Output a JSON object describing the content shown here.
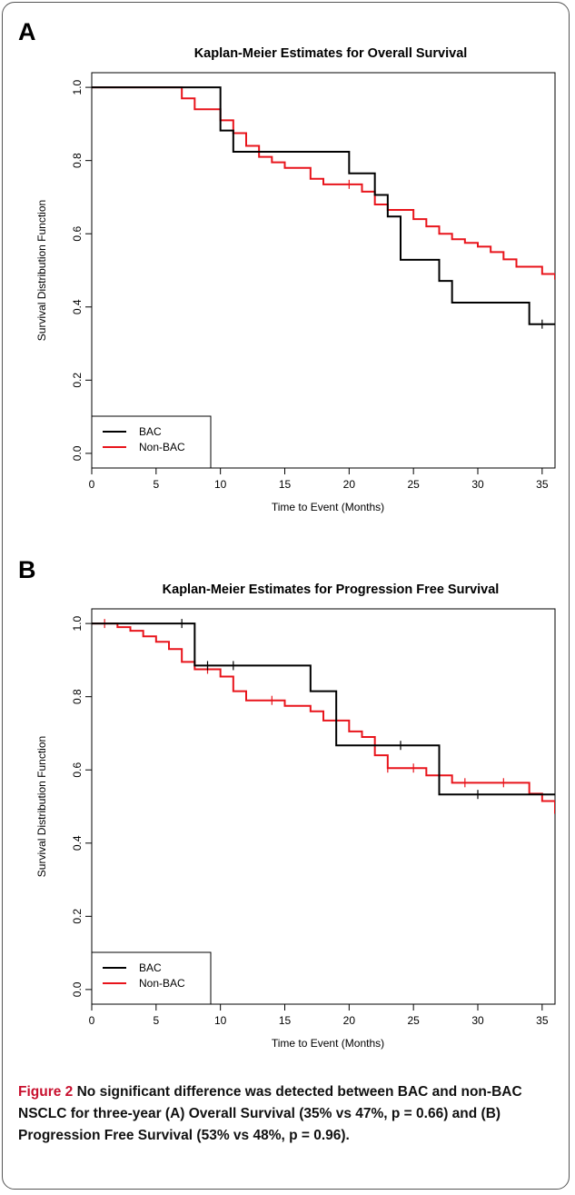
{
  "panels": [
    {
      "letter": "A"
    },
    {
      "letter": "B"
    }
  ],
  "chart_data": [
    {
      "type": "line",
      "title": "Kaplan-Meier Estimates for Overall Survival",
      "xlabel": "Time to Event (Months)",
      "ylabel": "Survival Distribution Function",
      "xlim": [
        0,
        36
      ],
      "ylim": [
        0,
        1
      ],
      "x_ticks": [
        "0",
        "5",
        "10",
        "15",
        "20",
        "25",
        "30",
        "35"
      ],
      "y_ticks": [
        "0.0",
        "0.2",
        "0.4",
        "0.6",
        "0.8",
        "1.0"
      ],
      "legend": "bottom-left",
      "series": [
        {
          "name": "BAC",
          "color": "#000000",
          "step": [
            [
              0,
              1.0
            ],
            [
              10,
              0.882
            ],
            [
              11,
              0.824
            ],
            [
              20,
              0.765
            ],
            [
              22,
              0.706
            ],
            [
              23,
              0.647
            ],
            [
              24,
              0.529
            ],
            [
              27,
              0.471
            ],
            [
              28,
              0.412
            ],
            [
              34,
              0.353
            ],
            [
              36,
              0.353
            ]
          ],
          "censored": [
            [
              35,
              0.353
            ]
          ]
        },
        {
          "name": "Non-BAC",
          "color": "#e8141b",
          "step": [
            [
              0,
              1.0
            ],
            [
              7,
              0.97
            ],
            [
              8,
              0.94
            ],
            [
              10,
              0.91
            ],
            [
              11,
              0.875
            ],
            [
              12,
              0.84
            ],
            [
              13,
              0.81
            ],
            [
              14,
              0.795
            ],
            [
              15,
              0.78
            ],
            [
              17,
              0.75
            ],
            [
              18,
              0.735
            ],
            [
              21,
              0.715
            ],
            [
              22,
              0.68
            ],
            [
              23,
              0.665
            ],
            [
              25,
              0.64
            ],
            [
              26,
              0.62
            ],
            [
              27,
              0.6
            ],
            [
              28,
              0.585
            ],
            [
              29,
              0.575
            ],
            [
              30,
              0.565
            ],
            [
              31,
              0.55
            ],
            [
              32,
              0.53
            ],
            [
              33,
              0.51
            ],
            [
              35,
              0.49
            ],
            [
              36,
              0.475
            ]
          ],
          "censored": [
            [
              20,
              0.735
            ]
          ]
        }
      ]
    },
    {
      "type": "line",
      "title": "Kaplan-Meier Estimates for Progression Free Survival",
      "xlabel": "Time to Event (Months)",
      "ylabel": "Survival Distribution Function",
      "xlim": [
        0,
        36
      ],
      "ylim": [
        0,
        1
      ],
      "x_ticks": [
        "0",
        "5",
        "10",
        "15",
        "20",
        "25",
        "30",
        "35"
      ],
      "y_ticks": [
        "0.0",
        "0.2",
        "0.4",
        "0.6",
        "0.8",
        "1.0"
      ],
      "legend": "bottom-left",
      "series": [
        {
          "name": "BAC",
          "color": "#000000",
          "step": [
            [
              0,
              1.0
            ],
            [
              8,
              0.885
            ],
            [
              17,
              0.815
            ],
            [
              19,
              0.667
            ],
            [
              27,
              0.533
            ],
            [
              36,
              0.533
            ]
          ],
          "censored": [
            [
              7,
              1.0
            ],
            [
              9,
              0.885
            ],
            [
              11,
              0.885
            ],
            [
              24,
              0.667
            ],
            [
              30,
              0.533
            ]
          ]
        },
        {
          "name": "Non-BAC",
          "color": "#e8141b",
          "step": [
            [
              0,
              1.0
            ],
            [
              2,
              0.99
            ],
            [
              3,
              0.98
            ],
            [
              4,
              0.965
            ],
            [
              5,
              0.95
            ],
            [
              6,
              0.93
            ],
            [
              7,
              0.895
            ],
            [
              8,
              0.875
            ],
            [
              10,
              0.855
            ],
            [
              11,
              0.815
            ],
            [
              12,
              0.79
            ],
            [
              15,
              0.775
            ],
            [
              17,
              0.76
            ],
            [
              18,
              0.735
            ],
            [
              20,
              0.705
            ],
            [
              21,
              0.69
            ],
            [
              22,
              0.64
            ],
            [
              23,
              0.605
            ],
            [
              26,
              0.585
            ],
            [
              28,
              0.565
            ],
            [
              34,
              0.535
            ],
            [
              35,
              0.515
            ],
            [
              36,
              0.48
            ]
          ],
          "censored": [
            [
              1,
              1.0
            ],
            [
              9,
              0.875
            ],
            [
              14,
              0.79
            ],
            [
              23,
              0.605
            ],
            [
              25,
              0.605
            ],
            [
              29,
              0.565
            ],
            [
              32,
              0.565
            ]
          ]
        }
      ]
    }
  ],
  "caption": {
    "figure_label": "Figure 2",
    "text": "No significant difference was detected between BAC and non-BAC NSCLC for three-year (A) Overall Survival (35% vs 47%, p = 0.66) and (B) Progression Free Survival (53% vs 48%, p = 0.96)."
  }
}
